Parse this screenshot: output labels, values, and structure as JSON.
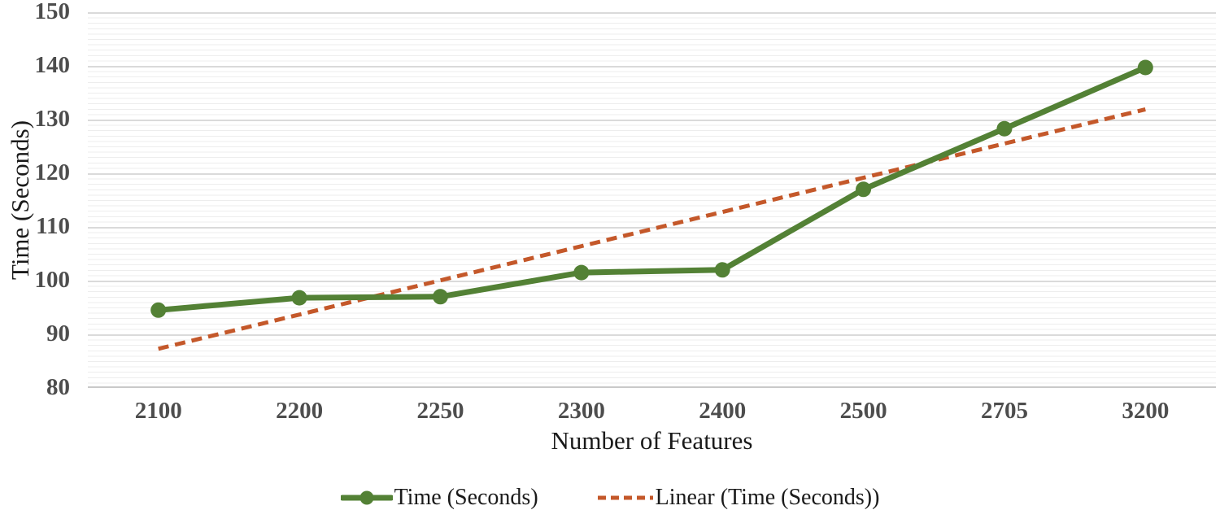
{
  "figure": {
    "y_axis_title": "Time (Seconds)",
    "x_axis_title": "Number of Features",
    "legend": [
      {
        "label": "Time (Seconds)",
        "style": "solid-line-with-marker",
        "color": "#538135"
      },
      {
        "label": "Linear (Time (Seconds))",
        "style": "dashed-line",
        "color": "#C4582A"
      }
    ]
  },
  "chart_data": {
    "type": "line",
    "title": "",
    "xlabel": "Number of Features",
    "ylabel": "Time (Seconds)",
    "categories": [
      "2100",
      "2200",
      "2250",
      "2300",
      "2400",
      "2500",
      "2705",
      "3200"
    ],
    "series": [
      {
        "name": "Time (Seconds)",
        "values": [
          94.5,
          96.8,
          97,
          101.5,
          102,
          117,
          128.3,
          139.7
        ],
        "color": "#538135",
        "marker": "circle",
        "line_width": 7
      }
    ],
    "trendline": {
      "name": "Linear (Time (Seconds))",
      "start_value": 87.3,
      "end_value": 131.9,
      "color": "#C4582A",
      "style": "dashed"
    },
    "ylim": [
      80,
      150
    ],
    "yticks": [
      150,
      140,
      130,
      120,
      110,
      100,
      90,
      80
    ],
    "ytick_step": 10,
    "grid": "horizontal-minor-and-major",
    "legend_position": "bottom",
    "colors": {
      "series_green": "#538135",
      "trend_orange": "#C4582A",
      "tick_label": "#4d4d4d",
      "axis_title": "#1a1a1a",
      "minor_gridline": "#ededed",
      "major_gridline": "#dadada",
      "axis_line": "#c9c9c9"
    }
  }
}
